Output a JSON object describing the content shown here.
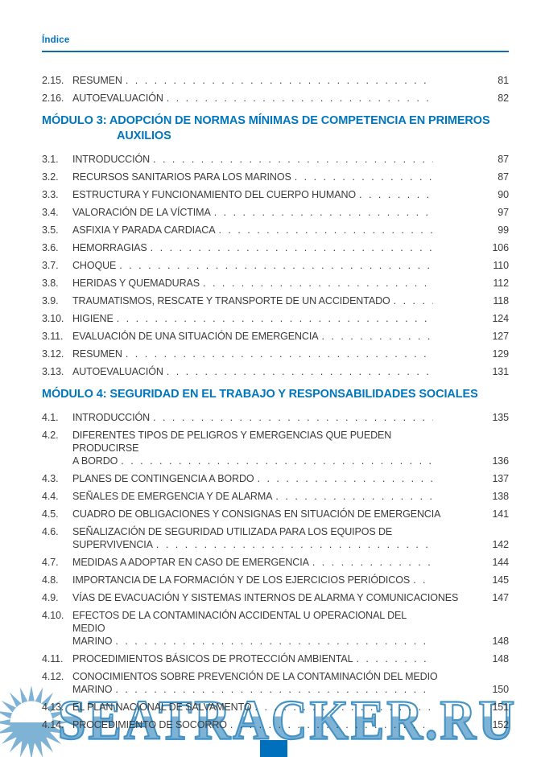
{
  "page": {
    "title": "Índice"
  },
  "toc": {
    "sections": [
      {
        "heading": "",
        "entries": [
          {
            "num": "2.15.",
            "lines": [
              "RESUMEN"
            ],
            "page": "81"
          },
          {
            "num": "2.16.",
            "lines": [
              "AUTOEVALUACIÓN"
            ],
            "page": "82"
          }
        ]
      },
      {
        "heading": "MÓDULO 3: ADOPCIÓN DE NORMAS MÍNIMAS DE COMPETENCIA EN PRIMEROS AUXILIOS",
        "entries": [
          {
            "num": "3.1.",
            "lines": [
              "INTRODUCCIÓN"
            ],
            "page": "87"
          },
          {
            "num": "3.2.",
            "lines": [
              "RECURSOS SANITARIOS PARA LOS MARINOS"
            ],
            "page": "87"
          },
          {
            "num": "3.3.",
            "lines": [
              "ESTRUCTURA Y FUNCIONAMIENTO DEL CUERPO HUMANO"
            ],
            "page": "90"
          },
          {
            "num": "3.4.",
            "lines": [
              "VALORACIÓN DE LA VÍCTIMA"
            ],
            "page": "97"
          },
          {
            "num": "3.5.",
            "lines": [
              "ASFIXIA Y PARADA CARDIACA"
            ],
            "page": "99"
          },
          {
            "num": "3.6.",
            "lines": [
              "HEMORRAGIAS"
            ],
            "page": "106"
          },
          {
            "num": "3.7.",
            "lines": [
              "CHOQUE"
            ],
            "page": "110"
          },
          {
            "num": "3.8.",
            "lines": [
              "HERIDAS Y QUEMADURAS"
            ],
            "page": "112"
          },
          {
            "num": "3.9.",
            "lines": [
              "TRAUMATISMOS, RESCATE Y TRANSPORTE DE UN ACCIDENTADO"
            ],
            "page": "118"
          },
          {
            "num": "3.10.",
            "lines": [
              "HIGIENE"
            ],
            "page": "124"
          },
          {
            "num": "3.11.",
            "lines": [
              "EVALUACIÓN DE UNA SITUACIÓN DE EMERGENCIA"
            ],
            "page": "127"
          },
          {
            "num": "3.12.",
            "lines": [
              "RESUMEN"
            ],
            "page": "129"
          },
          {
            "num": "3.13.",
            "lines": [
              "AUTOEVALUACIÓN"
            ],
            "page": "131"
          }
        ]
      },
      {
        "heading": "MÓDULO 4: SEGURIDAD EN EL TRABAJO Y RESPONSABILIDADES SOCIALES",
        "entries": [
          {
            "num": "4.1.",
            "lines": [
              "INTRODUCCIÓN"
            ],
            "page": "135"
          },
          {
            "num": "4.2.",
            "lines": [
              "DIFERENTES TIPOS DE PELIGROS Y EMERGENCIAS QUE PUEDEN PRODUCIRSE",
              "A BORDO"
            ],
            "page": "136"
          },
          {
            "num": "4.3.",
            "lines": [
              "PLANES DE CONTINGENCIA A BORDO"
            ],
            "page": "137"
          },
          {
            "num": "4.4.",
            "lines": [
              "SEÑALES DE EMERGENCIA Y DE ALARMA"
            ],
            "page": "138"
          },
          {
            "num": "4.5.",
            "lines": [
              "CUADRO DE OBLIGACIONES Y CONSIGNAS EN SITUACIÓN DE EMERGENCIA"
            ],
            "page": "141"
          },
          {
            "num": "4.6.",
            "lines": [
              "SEÑALIZACIÓN DE SEGURIDAD UTILIZADA PARA LOS EQUIPOS DE",
              "SUPERVIVENCIA"
            ],
            "page": "142"
          },
          {
            "num": "4.7.",
            "lines": [
              "MEDIDAS A ADOPTAR EN CASO DE EMERGENCIA"
            ],
            "page": "144"
          },
          {
            "num": "4.8.",
            "lines": [
              "IMPORTANCIA DE LA FORMACIÓN Y DE LOS EJERCICIOS PERIÓDICOS"
            ],
            "page": "145"
          },
          {
            "num": "4.9.",
            "lines": [
              "VÍAS DE EVACUACIÓN Y SISTEMAS INTERNOS DE ALARMA Y COMUNICACIONES"
            ],
            "page": "147"
          },
          {
            "num": "4.10.",
            "lines": [
              "EFECTOS DE LA CONTAMINACIÓN ACCIDENTAL U OPERACIONAL DEL MEDIO",
              "MARINO"
            ],
            "page": "148"
          },
          {
            "num": "4.11.",
            "lines": [
              "PROCEDIMIENTOS BÁSICOS DE PROTECCIÓN AMBIENTAL"
            ],
            "page": "148"
          },
          {
            "num": "4.12.",
            "lines": [
              "CONOCIMIENTOS SOBRE PREVENCIÓN DE LA CONTAMINACIÓN DEL MEDIO",
              "MARINO"
            ],
            "page": "150"
          },
          {
            "num": "4.13.",
            "lines": [
              "EL PLAN NACIONAL DE SALVAMENTO"
            ],
            "page": "151"
          },
          {
            "num": "4.14.",
            "lines": [
              "PROCEDIMIENTO DE SOCORRO"
            ],
            "page": "152"
          }
        ]
      }
    ]
  },
  "watermark": {
    "text": "SEATRACKER.RU",
    "logo": "sun-logo"
  },
  "colors": {
    "accent_blue": "#0076BD",
    "text": "#3B3B3A",
    "watermark_fill": "#7FB3D6",
    "watermark_outline": "#4593C4",
    "footer_block": "#0070BC"
  }
}
